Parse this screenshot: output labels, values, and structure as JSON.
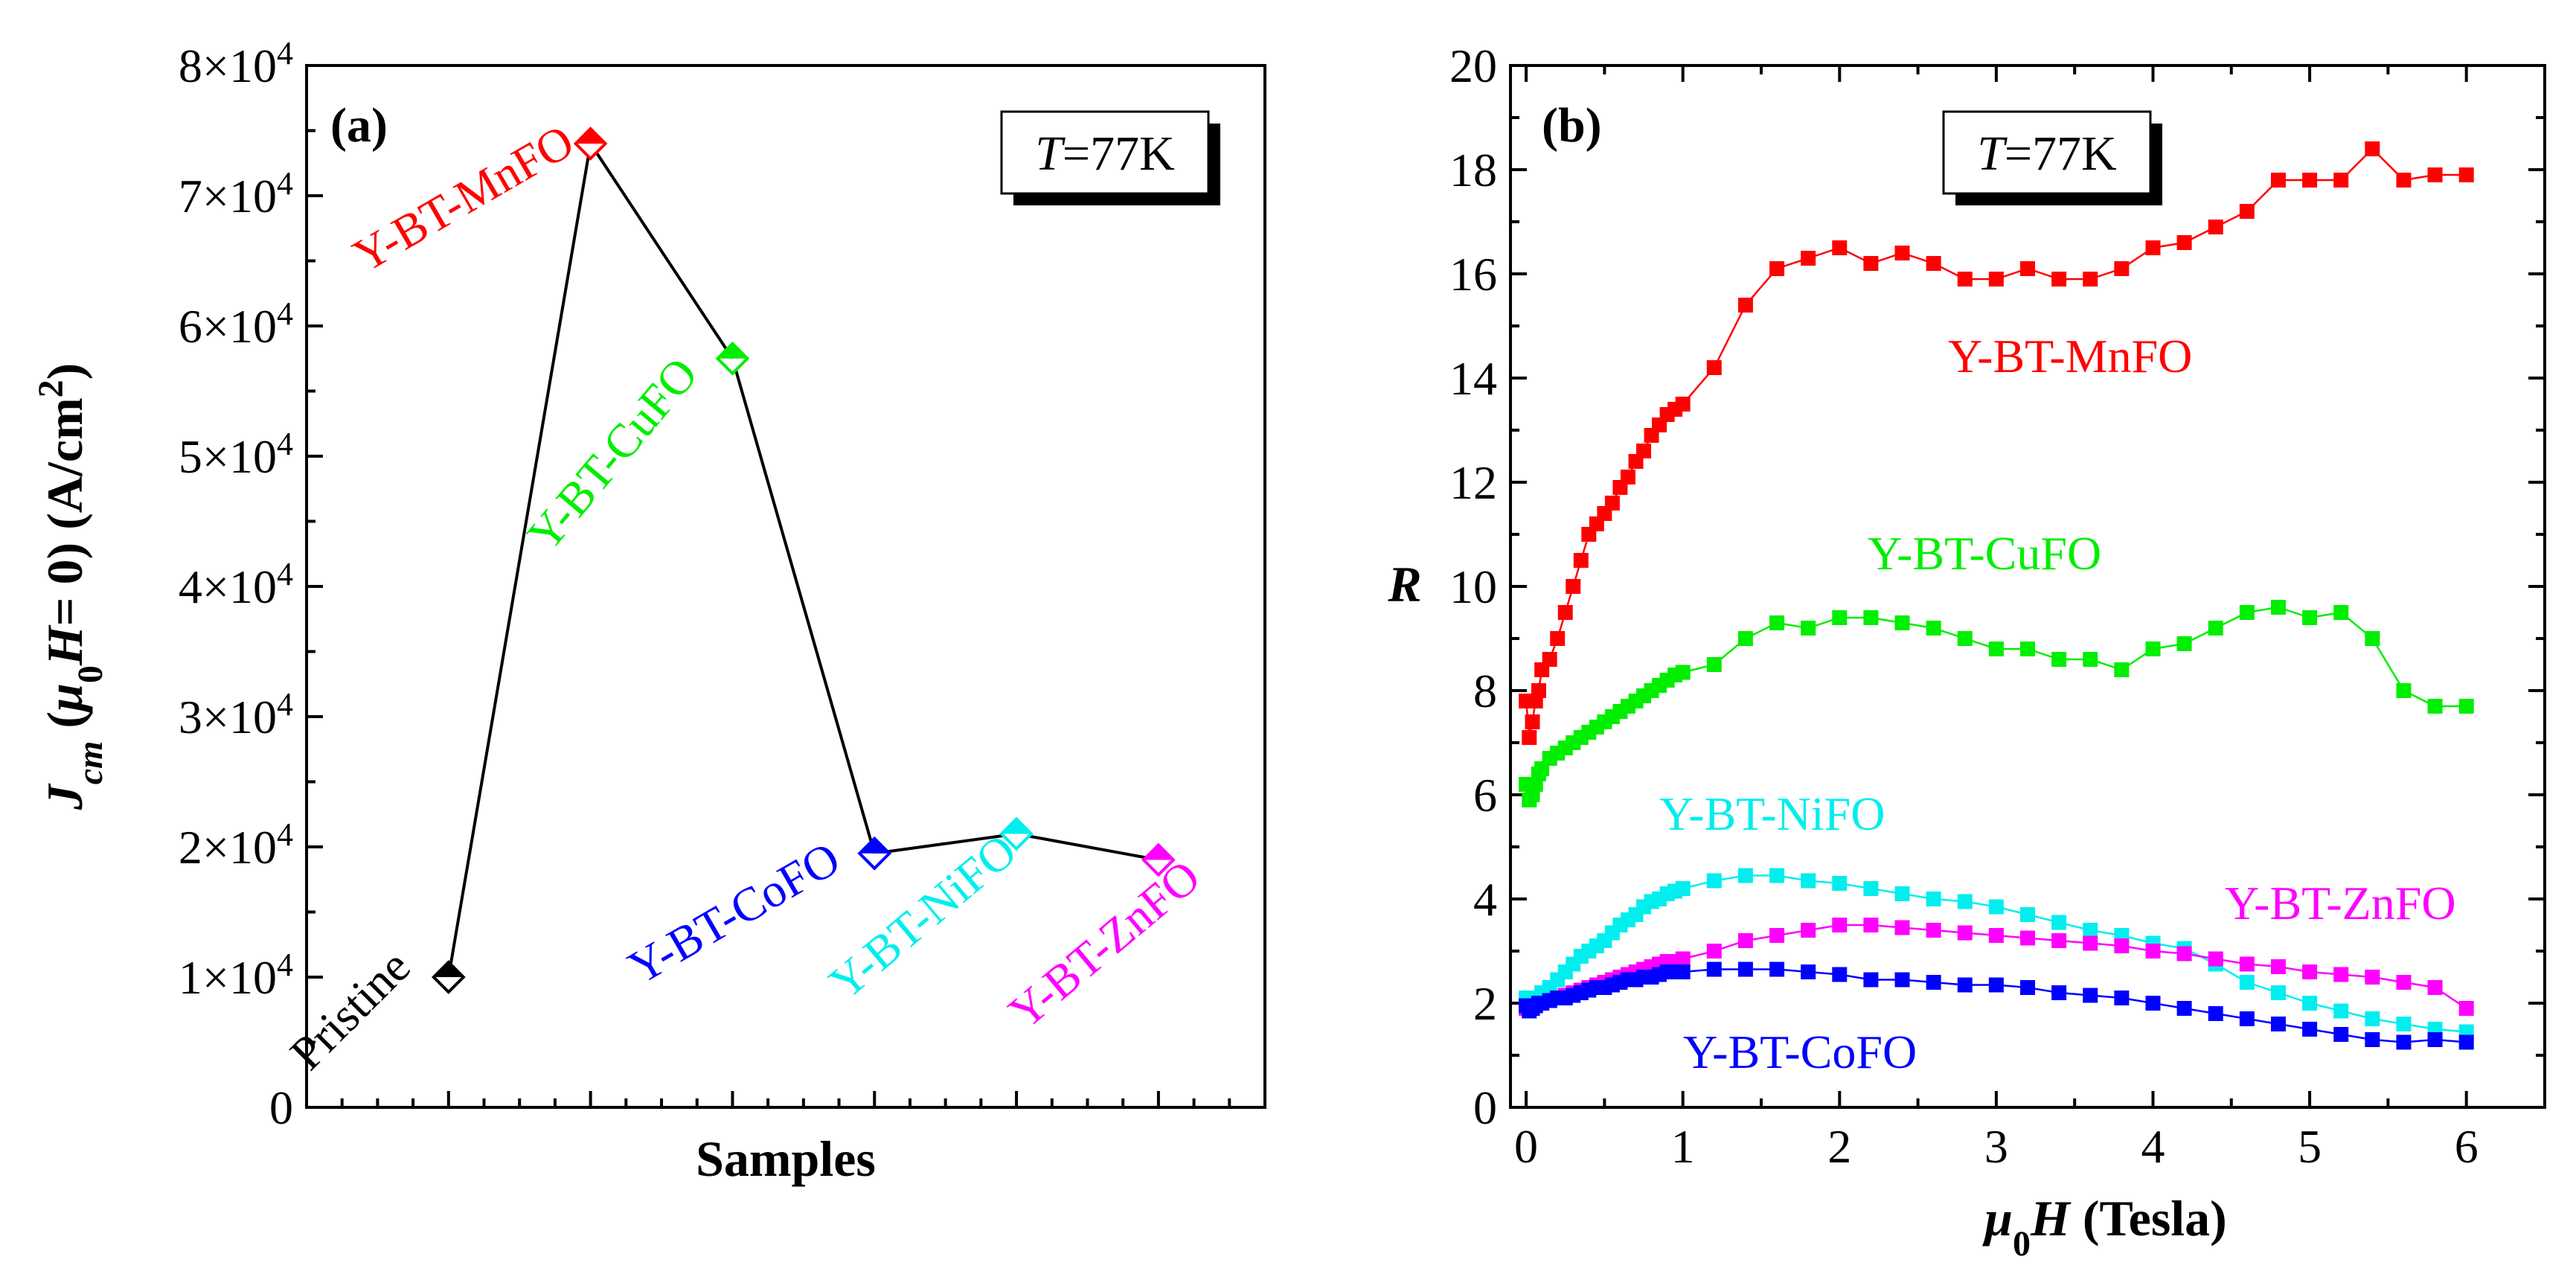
{
  "chart_data": [
    {
      "panel": "(a)",
      "type": "line",
      "temperature_label": {
        "italic": "T",
        "rest": "=77K"
      },
      "xlabel": "Samples",
      "ylabel": {
        "J": "J",
        "sub_cm": "cm",
        "open": " (",
        "mu": "μ",
        "sub0": "0",
        "H": "H",
        "eq": "= 0) (A/cm",
        "sup2": "2",
        "close": ")"
      },
      "ylim": [
        0,
        80000
      ],
      "yticks": [
        {
          "value": 0,
          "label": "0"
        },
        {
          "value": 10000,
          "base": "1×10",
          "exp": "4"
        },
        {
          "value": 20000,
          "base": "2×10",
          "exp": "4"
        },
        {
          "value": 30000,
          "base": "3×10",
          "exp": "4"
        },
        {
          "value": 40000,
          "base": "4×10",
          "exp": "4"
        },
        {
          "value": 50000,
          "base": "5×10",
          "exp": "4"
        },
        {
          "value": 60000,
          "base": "6×10",
          "exp": "4"
        },
        {
          "value": 70000,
          "base": "7×10",
          "exp": "4"
        },
        {
          "value": 80000,
          "base": "8×10",
          "exp": "4"
        }
      ],
      "points": [
        {
          "sample": "Pristine",
          "value": 10000,
          "color": "#000000"
        },
        {
          "sample": "Y-BT-MnFO",
          "value": 74000,
          "color": "#ff0000"
        },
        {
          "sample": "Y-BT-CuFO",
          "value": 57500,
          "color": "#00ee00"
        },
        {
          "sample": "Y-BT-CoFO",
          "value": 19500,
          "color": "#0000ff"
        },
        {
          "sample": "Y-BT-NiFO",
          "value": 21000,
          "color": "#00eeee"
        },
        {
          "sample": "Y-BT-ZnFO",
          "value": 19000,
          "color": "#ff00ff"
        }
      ]
    },
    {
      "panel": "(b)",
      "type": "line",
      "temperature_label": {
        "italic": "T",
        "rest": "=77K"
      },
      "xlabel": {
        "mu": "μ",
        "sub0": "0",
        "H": "H",
        "rest": " (Tesla)"
      },
      "ylabel": "R",
      "xlim": [
        -0.1,
        6.5
      ],
      "ylim": [
        0,
        20
      ],
      "xticks": [
        0,
        1,
        2,
        3,
        4,
        5,
        6
      ],
      "yticks": [
        0,
        2,
        4,
        6,
        8,
        10,
        12,
        14,
        16,
        18,
        20
      ],
      "series": [
        {
          "name": "Y-BT-MnFO",
          "color": "#ff0000",
          "x": [
            0,
            0.02,
            0.04,
            0.06,
            0.08,
            0.1,
            0.15,
            0.2,
            0.25,
            0.3,
            0.35,
            0.4,
            0.45,
            0.5,
            0.55,
            0.6,
            0.65,
            0.7,
            0.75,
            0.8,
            0.85,
            0.9,
            0.95,
            1.0,
            1.2,
            1.4,
            1.6,
            1.8,
            2.0,
            2.2,
            2.4,
            2.6,
            2.8,
            3.0,
            3.2,
            3.4,
            3.6,
            3.8,
            4.0,
            4.2,
            4.4,
            4.6,
            4.8,
            5.0,
            5.2,
            5.4,
            5.6,
            5.8,
            6.0
          ],
          "y": [
            7.8,
            7.1,
            7.4,
            7.8,
            8.0,
            8.4,
            8.6,
            9.0,
            9.5,
            10.0,
            10.5,
            11.0,
            11.2,
            11.4,
            11.6,
            11.9,
            12.1,
            12.4,
            12.6,
            12.9,
            13.1,
            13.3,
            13.4,
            13.5,
            14.2,
            15.4,
            16.1,
            16.3,
            16.5,
            16.2,
            16.4,
            16.2,
            15.9,
            15.9,
            16.1,
            15.9,
            15.9,
            16.1,
            16.5,
            16.6,
            16.9,
            17.2,
            17.8,
            17.8,
            17.8,
            18.4,
            17.8,
            17.9,
            17.9
          ]
        },
        {
          "name": "Y-BT-CuFO",
          "color": "#00ee00",
          "x": [
            0,
            0.02,
            0.04,
            0.06,
            0.08,
            0.1,
            0.15,
            0.2,
            0.25,
            0.3,
            0.35,
            0.4,
            0.45,
            0.5,
            0.55,
            0.6,
            0.65,
            0.7,
            0.75,
            0.8,
            0.85,
            0.9,
            0.95,
            1.0,
            1.2,
            1.4,
            1.6,
            1.8,
            2.0,
            2.2,
            2.4,
            2.6,
            2.8,
            3.0,
            3.2,
            3.4,
            3.6,
            3.8,
            4.0,
            4.2,
            4.4,
            4.6,
            4.8,
            5.0,
            5.2,
            5.4,
            5.6,
            5.8,
            6.0
          ],
          "y": [
            6.2,
            5.9,
            6.0,
            6.2,
            6.4,
            6.5,
            6.7,
            6.8,
            6.9,
            7.0,
            7.1,
            7.2,
            7.3,
            7.4,
            7.5,
            7.6,
            7.7,
            7.8,
            7.9,
            8.0,
            8.1,
            8.2,
            8.3,
            8.35,
            8.5,
            9.0,
            9.3,
            9.2,
            9.4,
            9.4,
            9.3,
            9.2,
            9.0,
            8.8,
            8.8,
            8.6,
            8.6,
            8.4,
            8.8,
            8.9,
            9.2,
            9.5,
            9.6,
            9.4,
            9.5,
            9.0,
            8.0,
            7.7,
            7.7
          ]
        },
        {
          "name": "Y-BT-NiFO",
          "color": "#00eeee",
          "x": [
            0,
            0.05,
            0.1,
            0.15,
            0.2,
            0.25,
            0.3,
            0.35,
            0.4,
            0.45,
            0.5,
            0.55,
            0.6,
            0.65,
            0.7,
            0.75,
            0.8,
            0.85,
            0.9,
            0.95,
            1.0,
            1.2,
            1.4,
            1.6,
            1.8,
            2.0,
            2.2,
            2.4,
            2.6,
            2.8,
            3.0,
            3.2,
            3.4,
            3.6,
            3.8,
            4.0,
            4.2,
            4.4,
            4.6,
            4.8,
            5.0,
            5.2,
            5.4,
            5.6,
            5.8,
            6.0
          ],
          "y": [
            2.1,
            2.1,
            2.2,
            2.3,
            2.45,
            2.6,
            2.75,
            2.9,
            3.0,
            3.1,
            3.2,
            3.35,
            3.5,
            3.6,
            3.7,
            3.85,
            3.95,
            4.0,
            4.1,
            4.15,
            4.2,
            4.35,
            4.45,
            4.45,
            4.35,
            4.3,
            4.2,
            4.1,
            4.0,
            3.95,
            3.85,
            3.7,
            3.55,
            3.4,
            3.3,
            3.15,
            3.05,
            2.75,
            2.4,
            2.2,
            2.0,
            1.85,
            1.7,
            1.6,
            1.5,
            1.45
          ]
        },
        {
          "name": "Y-BT-ZnFO",
          "color": "#ff00ff",
          "x": [
            0,
            0.05,
            0.1,
            0.15,
            0.2,
            0.25,
            0.3,
            0.35,
            0.4,
            0.45,
            0.5,
            0.55,
            0.6,
            0.65,
            0.7,
            0.75,
            0.8,
            0.85,
            0.9,
            0.95,
            1.0,
            1.2,
            1.4,
            1.6,
            1.8,
            2.0,
            2.2,
            2.4,
            2.6,
            2.8,
            3.0,
            3.2,
            3.4,
            3.6,
            3.8,
            4.0,
            4.2,
            4.4,
            4.6,
            4.8,
            5.0,
            5.2,
            5.4,
            5.6,
            5.8,
            6.0
          ],
          "y": [
            1.9,
            1.95,
            2.0,
            2.05,
            2.1,
            2.15,
            2.2,
            2.25,
            2.3,
            2.35,
            2.4,
            2.45,
            2.5,
            2.55,
            2.6,
            2.65,
            2.7,
            2.75,
            2.8,
            2.8,
            2.85,
            3.0,
            3.2,
            3.3,
            3.4,
            3.5,
            3.5,
            3.45,
            3.4,
            3.35,
            3.3,
            3.25,
            3.2,
            3.15,
            3.1,
            3.0,
            2.95,
            2.85,
            2.75,
            2.7,
            2.6,
            2.55,
            2.5,
            2.4,
            2.3,
            1.9
          ]
        },
        {
          "name": "Y-BT-CoFO",
          "color": "#0000ff",
          "x": [
            0,
            0.02,
            0.04,
            0.06,
            0.08,
            0.1,
            0.15,
            0.2,
            0.25,
            0.3,
            0.35,
            0.4,
            0.45,
            0.5,
            0.55,
            0.6,
            0.65,
            0.7,
            0.75,
            0.8,
            0.85,
            0.9,
            0.95,
            1.0,
            1.2,
            1.4,
            1.6,
            1.8,
            2.0,
            2.2,
            2.4,
            2.6,
            2.8,
            3.0,
            3.2,
            3.4,
            3.6,
            3.8,
            4.0,
            4.2,
            4.4,
            4.6,
            4.8,
            5.0,
            5.2,
            5.4,
            5.6,
            5.8,
            6.0
          ],
          "y": [
            1.95,
            1.85,
            1.9,
            1.95,
            2.0,
            2.0,
            2.05,
            2.1,
            2.1,
            2.15,
            2.2,
            2.25,
            2.3,
            2.3,
            2.35,
            2.4,
            2.45,
            2.45,
            2.5,
            2.5,
            2.55,
            2.6,
            2.6,
            2.6,
            2.65,
            2.65,
            2.65,
            2.6,
            2.55,
            2.45,
            2.45,
            2.4,
            2.35,
            2.35,
            2.3,
            2.2,
            2.15,
            2.1,
            2.0,
            1.9,
            1.8,
            1.7,
            1.6,
            1.5,
            1.4,
            1.3,
            1.25,
            1.3,
            1.25
          ]
        }
      ],
      "series_labels": [
        {
          "name": "Y-BT-MnFO",
          "color": "#ff0000"
        },
        {
          "name": "Y-BT-CuFO",
          "color": "#00ee00"
        },
        {
          "name": "Y-BT-NiFO",
          "color": "#00eeee"
        },
        {
          "name": "Y-BT-ZnFO",
          "color": "#ff00ff"
        },
        {
          "name": "Y-BT-CoFO",
          "color": "#0000ff"
        }
      ]
    }
  ]
}
